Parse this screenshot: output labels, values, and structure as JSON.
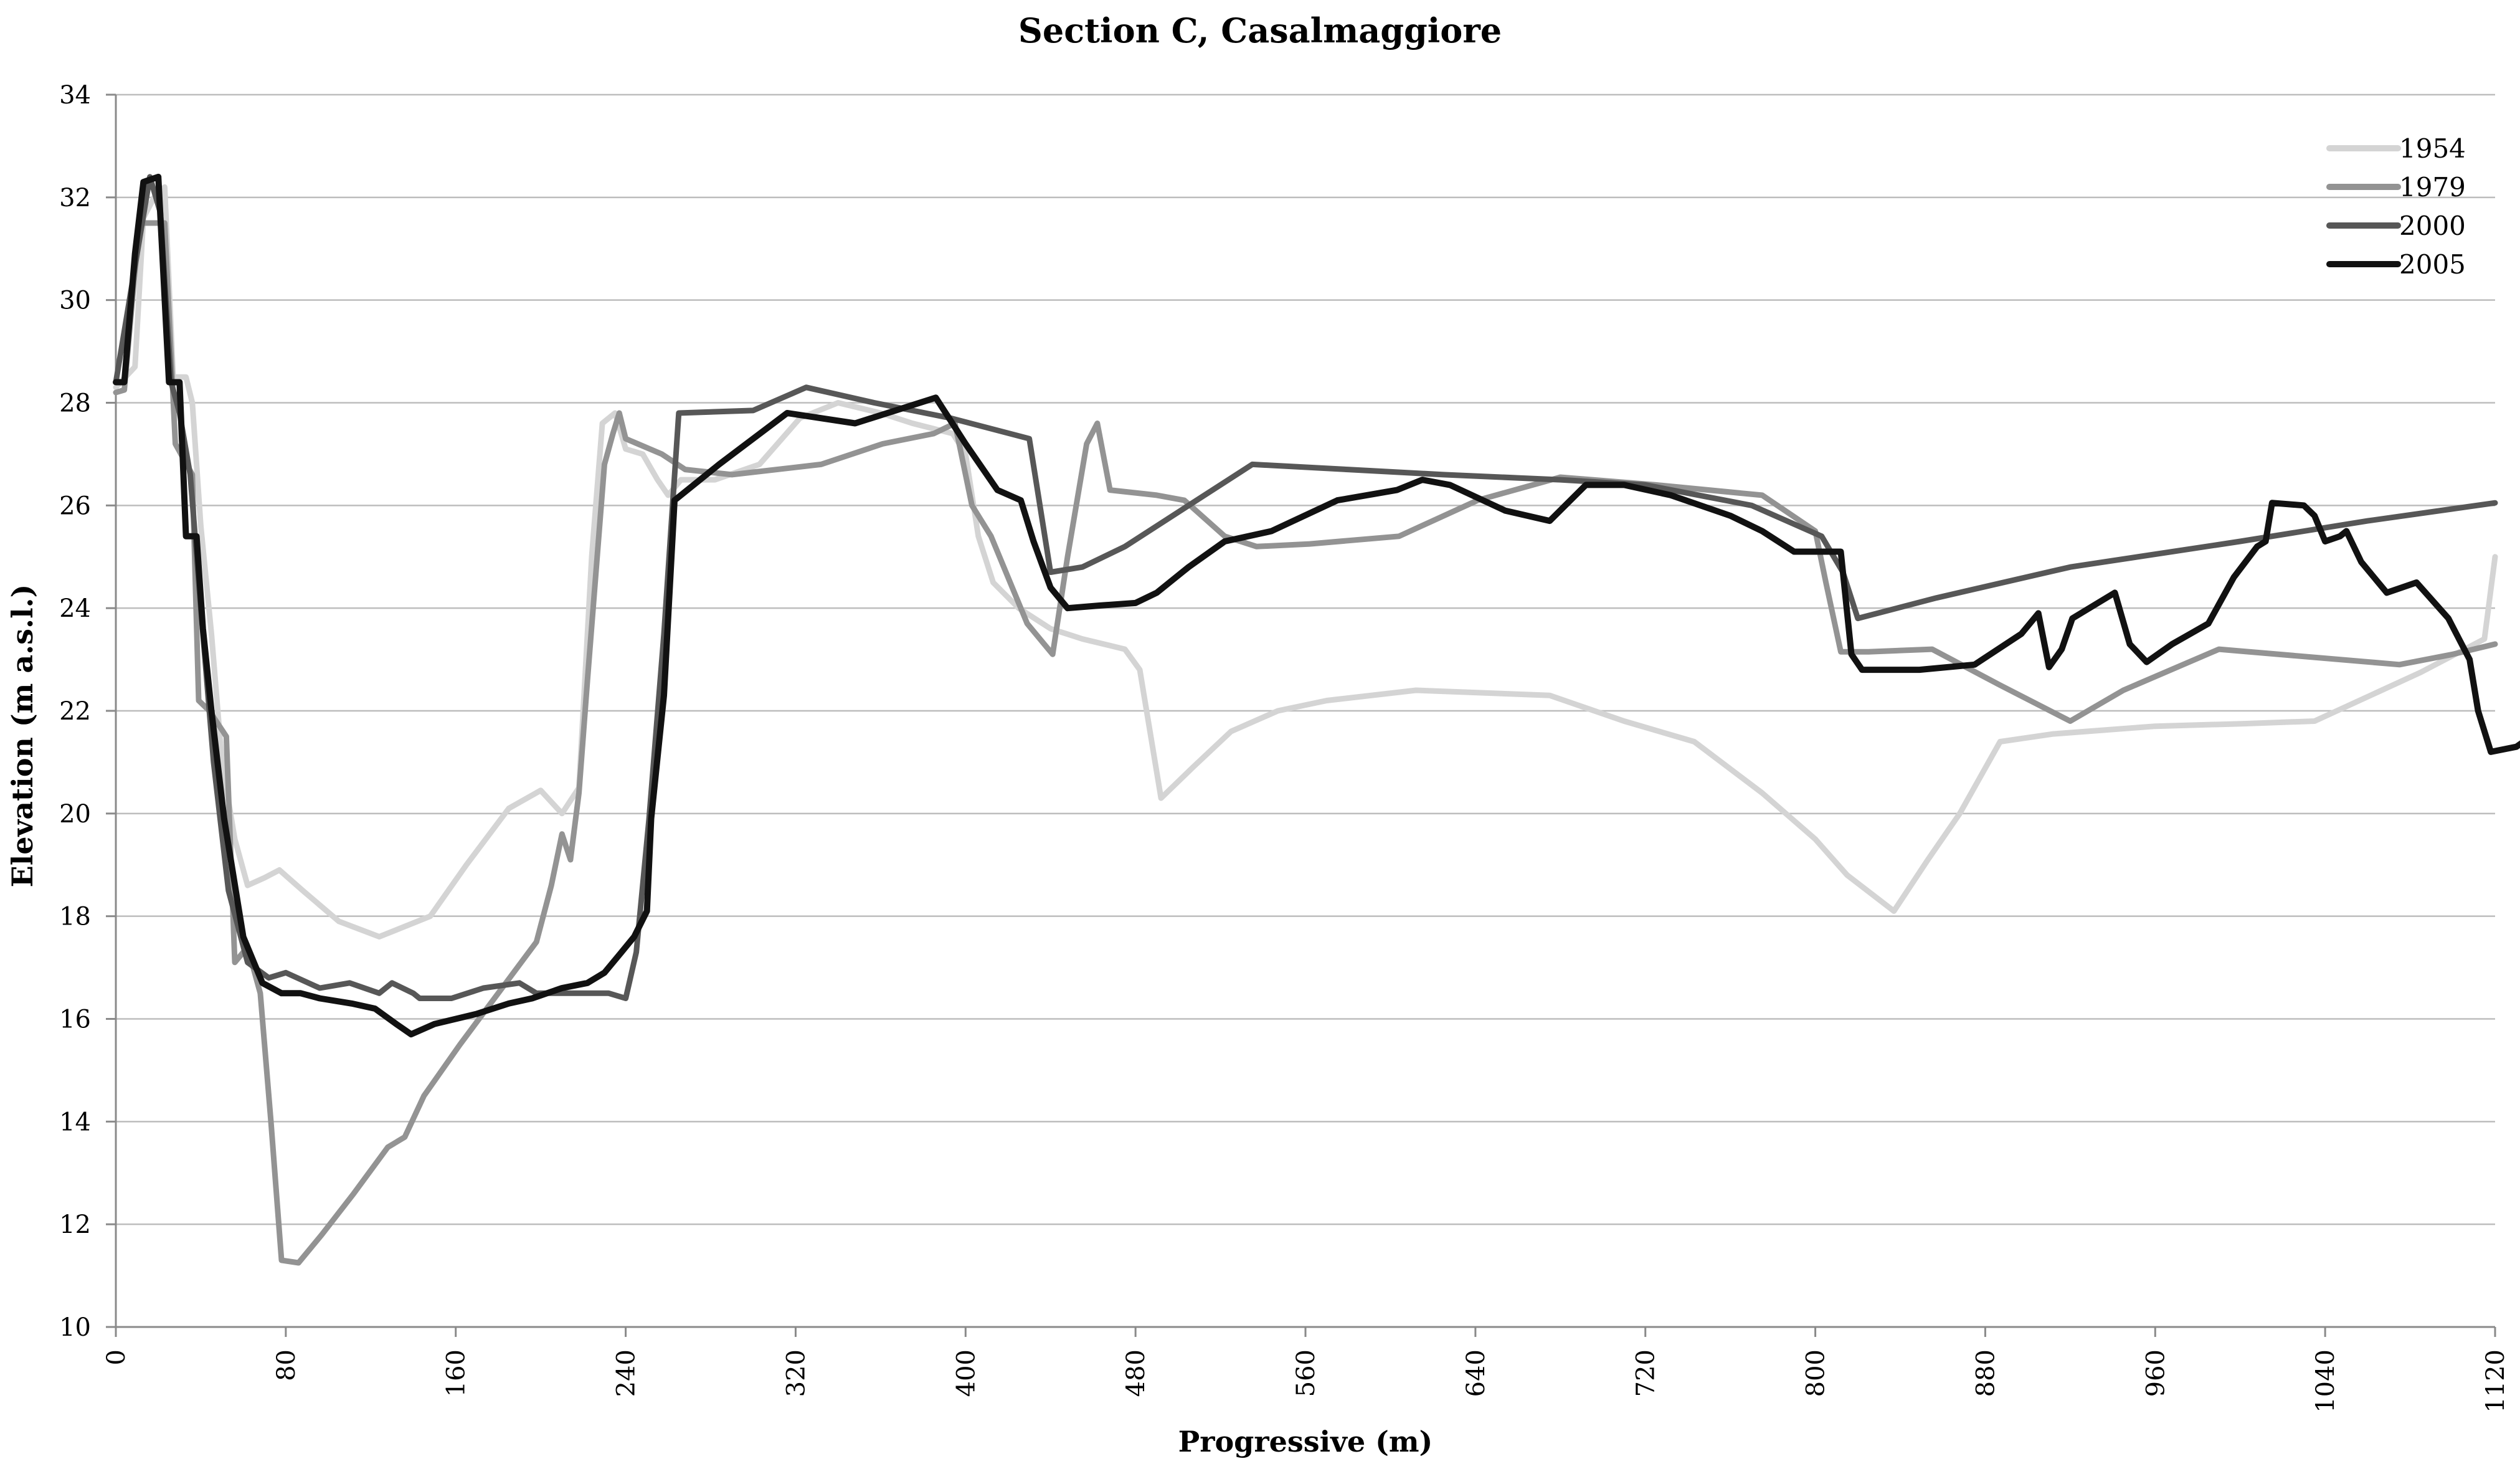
{
  "chart_data": {
    "type": "line",
    "title": "Section C, Casalmaggiore",
    "xlabel": "Progressive (m)",
    "ylabel": "Elevation (m a.s.l.)",
    "xlim": [
      0,
      1120
    ],
    "ylim": [
      10,
      34
    ],
    "x_ticks": [
      0,
      80,
      160,
      240,
      320,
      400,
      480,
      560,
      640,
      720,
      800,
      880,
      960,
      1040,
      1120
    ],
    "y_ticks": [
      10,
      12,
      14,
      16,
      18,
      20,
      22,
      24,
      26,
      28,
      30,
      32,
      34
    ],
    "x_tick_labels": [
      "0",
      "80",
      "160",
      "240",
      "320",
      "400",
      "480",
      "560",
      "640",
      "720",
      "800",
      "880",
      "960",
      "1040",
      "1120"
    ],
    "y_tick_labels": [
      "10",
      "12",
      "14",
      "16",
      "18",
      "20",
      "22",
      "24",
      "26",
      "28",
      "30",
      "32",
      "34"
    ],
    "grid": "horizontal",
    "legend_position": "top-right",
    "series": [
      {
        "name": "1954",
        "color": "#d4d4d4",
        "points": [
          [
            0,
            28.3
          ],
          [
            9,
            28.7
          ],
          [
            13,
            31.6
          ],
          [
            18,
            32
          ],
          [
            23,
            32.2
          ],
          [
            27,
            28.5
          ],
          [
            33,
            28.5
          ],
          [
            36,
            28
          ],
          [
            40,
            25.6
          ],
          [
            45,
            23.5
          ],
          [
            50,
            21
          ],
          [
            56,
            19.5
          ],
          [
            62,
            18.6
          ],
          [
            70,
            18.75
          ],
          [
            77,
            18.9
          ],
          [
            88,
            18.5
          ],
          [
            105,
            17.9
          ],
          [
            124,
            17.6
          ],
          [
            148,
            18
          ],
          [
            165,
            19
          ],
          [
            185,
            20.1
          ],
          [
            200,
            20.45
          ],
          [
            210,
            20
          ],
          [
            218,
            20.5
          ],
          [
            224,
            25
          ],
          [
            229,
            27.6
          ],
          [
            235,
            27.8
          ],
          [
            240,
            27.1
          ],
          [
            248,
            27
          ],
          [
            255,
            26.5
          ],
          [
            260,
            26.2
          ],
          [
            266,
            26.5
          ],
          [
            282,
            26.5
          ],
          [
            303,
            26.8
          ],
          [
            322,
            27.7
          ],
          [
            340,
            28
          ],
          [
            360,
            27.8
          ],
          [
            375,
            27.6
          ],
          [
            394,
            27.4
          ],
          [
            400,
            27
          ],
          [
            406,
            25.4
          ],
          [
            413,
            24.5
          ],
          [
            425,
            24
          ],
          [
            440,
            23.6
          ],
          [
            455,
            23.4
          ],
          [
            475,
            23.2
          ],
          [
            482,
            22.8
          ],
          [
            492,
            20.3
          ],
          [
            507,
            20.9
          ],
          [
            525,
            21.6
          ],
          [
            547,
            22
          ],
          [
            570,
            22.2
          ],
          [
            612,
            22.4
          ],
          [
            675,
            22.3
          ],
          [
            710,
            21.8
          ],
          [
            743,
            21.4
          ],
          [
            775,
            20.4
          ],
          [
            800,
            19.5
          ],
          [
            815,
            18.8
          ],
          [
            837,
            18.1
          ],
          [
            853,
            19.1
          ],
          [
            868,
            20
          ],
          [
            887,
            21.4
          ],
          [
            912,
            21.55
          ],
          [
            960,
            21.7
          ],
          [
            1002,
            21.75
          ],
          [
            1035,
            21.8
          ],
          [
            1085,
            22.75
          ],
          [
            1115,
            23.4
          ],
          [
            1120,
            25
          ]
        ]
      },
      {
        "name": "1979",
        "color": "#939393",
        "points": [
          [
            0,
            28.2
          ],
          [
            4,
            28.25
          ],
          [
            11,
            31.5
          ],
          [
            17,
            31.5
          ],
          [
            23,
            31.5
          ],
          [
            28,
            27.2
          ],
          [
            36,
            26.6
          ],
          [
            39,
            22.2
          ],
          [
            44,
            22
          ],
          [
            52,
            21.5
          ],
          [
            56,
            17.1
          ],
          [
            62,
            17.4
          ],
          [
            68,
            16.5
          ],
          [
            73,
            14
          ],
          [
            78,
            11.3
          ],
          [
            86,
            11.25
          ],
          [
            97,
            11.8
          ],
          [
            112,
            12.6
          ],
          [
            128,
            13.5
          ],
          [
            136,
            13.7
          ],
          [
            145,
            14.5
          ],
          [
            162,
            15.5
          ],
          [
            180,
            16.5
          ],
          [
            198,
            17.5
          ],
          [
            205,
            18.6
          ],
          [
            210,
            19.6
          ],
          [
            214,
            19.1
          ],
          [
            218,
            20.4
          ],
          [
            222,
            22.6
          ],
          [
            230,
            26.8
          ],
          [
            234,
            27.4
          ],
          [
            237,
            27.8
          ],
          [
            240,
            27.3
          ],
          [
            257,
            27
          ],
          [
            268,
            26.7
          ],
          [
            290,
            26.6
          ],
          [
            332,
            26.8
          ],
          [
            361,
            27.2
          ],
          [
            385,
            27.4
          ],
          [
            395,
            27.6
          ],
          [
            403,
            26
          ],
          [
            412,
            25.4
          ],
          [
            421,
            24.5
          ],
          [
            429,
            23.7
          ],
          [
            437,
            23.3
          ],
          [
            441,
            23.1
          ],
          [
            448,
            25
          ],
          [
            457,
            27.2
          ],
          [
            462,
            27.6
          ],
          [
            468,
            26.3
          ],
          [
            490,
            26.2
          ],
          [
            503,
            26.1
          ],
          [
            522,
            25.4
          ],
          [
            537,
            25.2
          ],
          [
            562,
            25.25
          ],
          [
            604,
            25.4
          ],
          [
            641,
            26.1
          ],
          [
            680,
            26.55
          ],
          [
            725,
            26.4
          ],
          [
            775,
            26.2
          ],
          [
            800,
            25.5
          ],
          [
            805,
            24.5
          ],
          [
            812,
            23.15
          ],
          [
            825,
            23.15
          ],
          [
            855,
            23.2
          ],
          [
            887,
            22.5
          ],
          [
            920,
            21.8
          ],
          [
            945,
            22.4
          ],
          [
            990,
            23.2
          ],
          [
            1075,
            22.9
          ],
          [
            1100,
            23.1
          ],
          [
            1120,
            23.3
          ]
        ]
      },
      {
        "name": "2000",
        "color": "#575757",
        "points": [
          [
            0,
            28.4
          ],
          [
            10,
            30.9
          ],
          [
            16,
            32.4
          ],
          [
            21,
            31.7
          ],
          [
            26,
            28.4
          ],
          [
            30,
            27.8
          ],
          [
            35,
            26.6
          ],
          [
            40,
            24
          ],
          [
            46,
            21
          ],
          [
            53,
            18.5
          ],
          [
            62,
            17.1
          ],
          [
            72,
            16.8
          ],
          [
            80,
            16.9
          ],
          [
            96,
            16.6
          ],
          [
            110,
            16.7
          ],
          [
            124,
            16.5
          ],
          [
            130,
            16.7
          ],
          [
            140,
            16.5
          ],
          [
            143,
            16.4
          ],
          [
            158,
            16.4
          ],
          [
            173,
            16.6
          ],
          [
            190,
            16.7
          ],
          [
            198,
            16.5
          ],
          [
            208,
            16.5
          ],
          [
            220,
            16.5
          ],
          [
            232,
            16.5
          ],
          [
            240,
            16.4
          ],
          [
            245,
            17.3
          ],
          [
            251,
            19.9
          ],
          [
            258,
            23.5
          ],
          [
            265,
            27.8
          ],
          [
            300,
            27.85
          ],
          [
            325,
            28.3
          ],
          [
            357,
            28
          ],
          [
            393,
            27.7
          ],
          [
            430,
            27.3
          ],
          [
            440,
            24.7
          ],
          [
            455,
            24.8
          ],
          [
            475,
            25.2
          ],
          [
            505,
            26
          ],
          [
            535,
            26.8
          ],
          [
            580,
            26.7
          ],
          [
            625,
            26.6
          ],
          [
            680,
            26.5
          ],
          [
            720,
            26.4
          ],
          [
            770,
            26
          ],
          [
            803,
            25.4
          ],
          [
            813,
            24.7
          ],
          [
            820,
            23.8
          ],
          [
            857,
            24.2
          ],
          [
            920,
            24.8
          ],
          [
            1000,
            25.3
          ],
          [
            1060,
            25.7
          ],
          [
            1120,
            26.05
          ]
        ]
      },
      {
        "name": "2005",
        "color": "#111111",
        "points": [
          [
            0,
            28.4
          ],
          [
            4,
            28.4
          ],
          [
            9,
            30.9
          ],
          [
            13,
            32.3
          ],
          [
            20,
            32.4
          ],
          [
            25,
            28.4
          ],
          [
            30,
            28.4
          ],
          [
            33,
            25.4
          ],
          [
            38,
            25.4
          ],
          [
            41,
            23.6
          ],
          [
            45,
            22
          ],
          [
            51,
            19.9
          ],
          [
            60,
            17.6
          ],
          [
            69,
            16.7
          ],
          [
            78,
            16.5
          ],
          [
            87,
            16.5
          ],
          [
            96,
            16.4
          ],
          [
            111,
            16.3
          ],
          [
            122,
            16.2
          ],
          [
            132,
            15.9
          ],
          [
            139,
            15.7
          ],
          [
            150,
            15.9
          ],
          [
            170,
            16.1
          ],
          [
            185,
            16.3
          ],
          [
            196,
            16.4
          ],
          [
            210,
            16.6
          ],
          [
            222,
            16.7
          ],
          [
            230,
            16.9
          ],
          [
            238,
            17.3
          ],
          [
            244,
            17.6
          ],
          [
            250,
            18.1
          ],
          [
            252,
            19.9
          ],
          [
            258,
            22.3
          ],
          [
            263,
            26.1
          ],
          [
            284,
            26.8
          ],
          [
            316,
            27.8
          ],
          [
            348,
            27.6
          ],
          [
            386,
            28.1
          ],
          [
            400,
            27.2
          ],
          [
            415,
            26.3
          ],
          [
            426,
            26.1
          ],
          [
            432,
            25.3
          ],
          [
            440,
            24.4
          ],
          [
            448,
            24
          ],
          [
            463,
            24.05
          ],
          [
            480,
            24.1
          ],
          [
            490,
            24.3
          ],
          [
            505,
            24.8
          ],
          [
            522,
            25.3
          ],
          [
            544,
            25.5
          ],
          [
            575,
            26.1
          ],
          [
            603,
            26.3
          ],
          [
            615,
            26.5
          ],
          [
            628,
            26.4
          ],
          [
            654,
            25.9
          ],
          [
            675,
            25.7
          ],
          [
            692,
            26.4
          ],
          [
            710,
            26.4
          ],
          [
            732,
            26.2
          ],
          [
            760,
            25.8
          ],
          [
            775,
            25.5
          ],
          [
            790,
            25.1
          ],
          [
            812,
            25.1
          ],
          [
            817,
            23.1
          ],
          [
            822,
            22.8
          ],
          [
            849,
            22.8
          ],
          [
            875,
            22.9
          ],
          [
            897,
            23.5
          ],
          [
            905,
            23.9
          ],
          [
            910,
            22.85
          ],
          [
            916,
            23.2
          ],
          [
            921,
            23.8
          ],
          [
            941,
            24.3
          ],
          [
            948,
            23.3
          ],
          [
            956,
            22.95
          ],
          [
            968,
            23.3
          ],
          [
            985,
            23.7
          ],
          [
            997,
            24.6
          ],
          [
            1008,
            25.2
          ],
          [
            1012,
            25.3
          ],
          [
            1015,
            26.05
          ],
          [
            1030,
            26
          ],
          [
            1035,
            25.8
          ],
          [
            1040,
            25.3
          ],
          [
            1047,
            25.4
          ],
          [
            1050,
            25.5
          ],
          [
            1057,
            24.9
          ],
          [
            1069,
            24.3
          ],
          [
            1083,
            24.5
          ],
          [
            1098,
            23.8
          ],
          [
            1108,
            23
          ],
          [
            1112,
            22
          ],
          [
            1118,
            21.2
          ],
          [
            1130,
            21.3
          ],
          [
            1137,
            21.5
          ]
        ]
      }
    ]
  }
}
